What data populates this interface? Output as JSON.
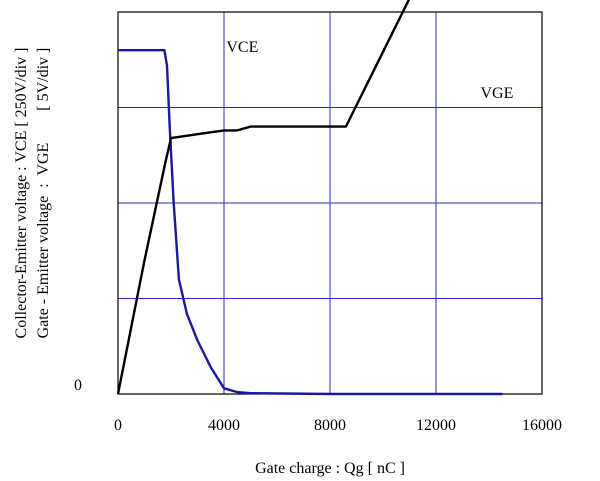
{
  "chart_data": {
    "type": "line",
    "xlabel": "Gate charge  :  Qg  [ nC ]",
    "ylabel_lines": [
      "Collector-Emitter voltage : VCE [ 250V/div ]",
      "Gate - Emitter voltage  :  VGE        [ 5V/div ]"
    ],
    "xlim": [
      0,
      16000
    ],
    "x_ticks": [
      0,
      4000,
      8000,
      12000,
      16000
    ],
    "x_tick_labels": [
      "0",
      "4000",
      "8000",
      "12000",
      "16000"
    ],
    "y_divisions": 4,
    "y_zero_label": "0",
    "grid": true,
    "series": [
      {
        "name": "VCE",
        "color": "#1a1a9a",
        "unit": "V",
        "per_div": 250,
        "points": [
          [
            0,
            900
          ],
          [
            1000,
            900
          ],
          [
            1750,
            900
          ],
          [
            1850,
            860
          ],
          [
            1950,
            700
          ],
          [
            2100,
            500
          ],
          [
            2300,
            300
          ],
          [
            2600,
            210
          ],
          [
            3000,
            140
          ],
          [
            3500,
            70
          ],
          [
            4000,
            15
          ],
          [
            4500,
            5
          ],
          [
            5000,
            2
          ],
          [
            8000,
            0
          ],
          [
            8600,
            0
          ],
          [
            14500,
            0
          ]
        ]
      },
      {
        "name": "VGE",
        "color": "#000000",
        "unit": "V",
        "per_div": 5,
        "points": [
          [
            0,
            0
          ],
          [
            1000,
            7
          ],
          [
            1800,
            12.2
          ],
          [
            2000,
            13.4
          ],
          [
            3000,
            13.6
          ],
          [
            4000,
            13.8
          ],
          [
            4500,
            13.8
          ],
          [
            5000,
            14.0
          ],
          [
            8600,
            14.0
          ],
          [
            14500,
            30.5
          ]
        ]
      }
    ]
  }
}
